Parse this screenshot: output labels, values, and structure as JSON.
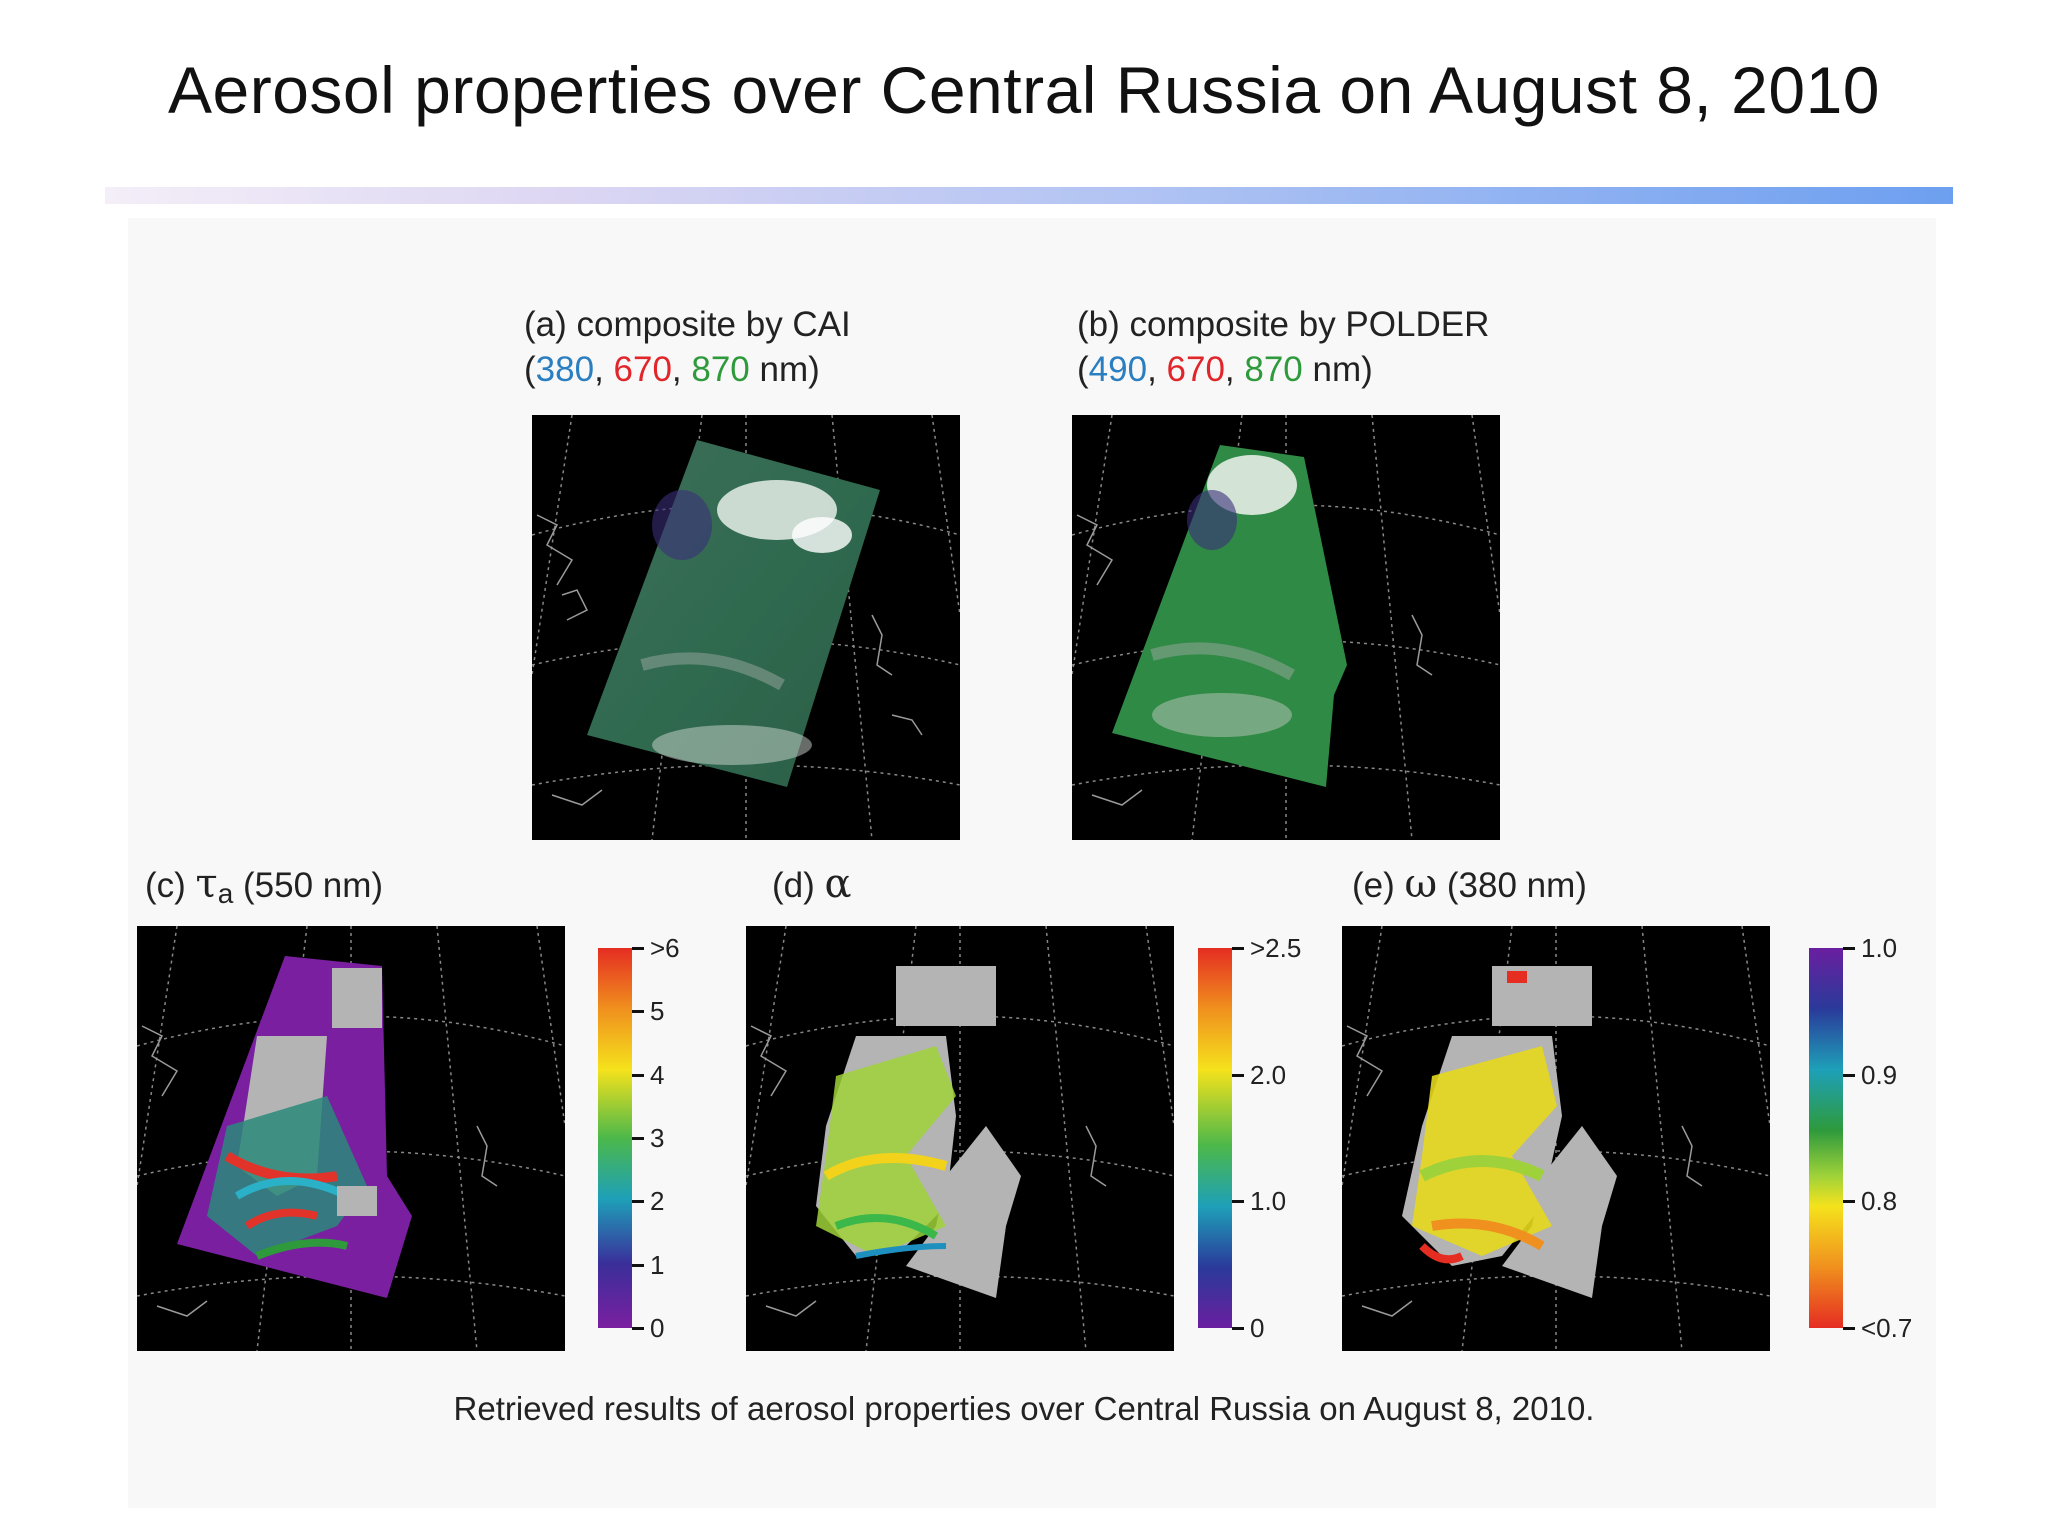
{
  "slide": {
    "title": "Aerosol properties over Central Russia on August 8, 2010"
  },
  "panels": {
    "a": {
      "label": "(a) composite by CAI",
      "open": "(",
      "wl1": "380",
      "sep1": ", ",
      "wl2": "670",
      "sep2": ", ",
      "wl3": "870",
      "close": " nm)"
    },
    "b": {
      "label": "(b) composite by POLDER",
      "open": "(",
      "wl1": "490",
      "sep1": ", ",
      "wl2": "670",
      "sep2": ", ",
      "wl3": "870",
      "close": " nm)"
    },
    "c": {
      "prefix": "(c)",
      "symbol": "τ",
      "subscript": "a",
      "suffix": "(550 nm)"
    },
    "d": {
      "prefix": "(d)",
      "symbol": "α"
    },
    "e": {
      "prefix": "(e)",
      "symbol": "ω",
      "suffix": "(380 nm)"
    }
  },
  "colorbars": {
    "c": {
      "labels": [
        ">6",
        "5",
        "4",
        "3",
        "2",
        "1",
        "0"
      ]
    },
    "d": {
      "labels": [
        ">2.5",
        "2.0",
        "1.0",
        "0"
      ]
    },
    "e": {
      "labels": [
        "1.0",
        "0.9",
        "0.8",
        "<0.7"
      ]
    }
  },
  "caption": "Retrieved results of aerosol properties over Central Russia on August 8, 2010.",
  "colors": {
    "background_map": "#000000",
    "swath_gray": "#b4b4b4",
    "aot_purple": "#7a1fa0",
    "title_rule_end": "#6d9ff0"
  }
}
